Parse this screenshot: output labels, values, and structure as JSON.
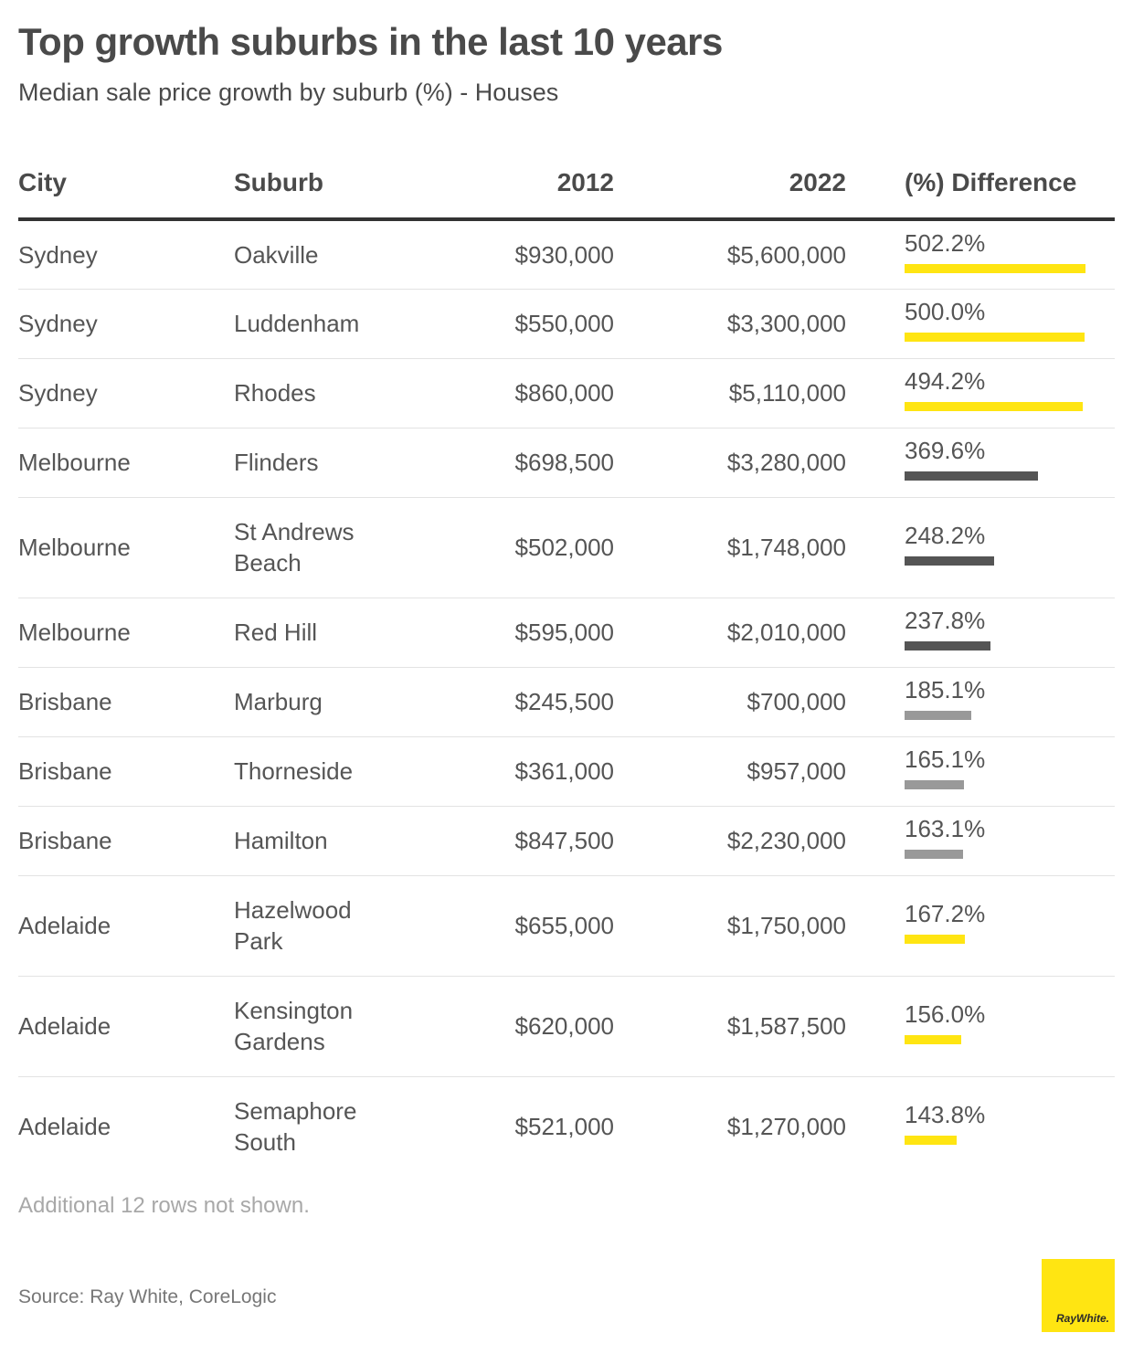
{
  "title": "Top growth suburbs in the last 10 years",
  "subtitle": "Median sale price growth by suburb (%) - Houses",
  "colors": {
    "sydney": "#ffe512",
    "melbourne": "#555555",
    "brisbane": "#999999",
    "adelaide": "#ffe512"
  },
  "chart_data": {
    "type": "table",
    "columns": [
      "City",
      "Suburb",
      "2012",
      "2022",
      "(%) Difference"
    ],
    "bar_max": 502.2,
    "rows": [
      {
        "city": "Sydney",
        "suburb": "Oakville",
        "y2012": "$930,000",
        "y2022": "$5,600,000",
        "diff": "502.2%",
        "diff_value": 502.2
      },
      {
        "city": "Sydney",
        "suburb": "Luddenham",
        "y2012": "$550,000",
        "y2022": "$3,300,000",
        "diff": "500.0%",
        "diff_value": 500.0
      },
      {
        "city": "Sydney",
        "suburb": "Rhodes",
        "y2012": "$860,000",
        "y2022": "$5,110,000",
        "diff": "494.2%",
        "diff_value": 494.2
      },
      {
        "city": "Melbourne",
        "suburb": "Flinders",
        "y2012": "$698,500",
        "y2022": "$3,280,000",
        "diff": "369.6%",
        "diff_value": 369.6
      },
      {
        "city": "Melbourne",
        "suburb": "St Andrews Beach",
        "y2012": "$502,000",
        "y2022": "$1,748,000",
        "diff": "248.2%",
        "diff_value": 248.2
      },
      {
        "city": "Melbourne",
        "suburb": "Red Hill",
        "y2012": "$595,000",
        "y2022": "$2,010,000",
        "diff": "237.8%",
        "diff_value": 237.8
      },
      {
        "city": "Brisbane",
        "suburb": "Marburg",
        "y2012": "$245,500",
        "y2022": "$700,000",
        "diff": "185.1%",
        "diff_value": 185.1
      },
      {
        "city": "Brisbane",
        "suburb": "Thorneside",
        "y2012": "$361,000",
        "y2022": "$957,000",
        "diff": "165.1%",
        "diff_value": 165.1
      },
      {
        "city": "Brisbane",
        "suburb": "Hamilton",
        "y2012": "$847,500",
        "y2022": "$2,230,000",
        "diff": "163.1%",
        "diff_value": 163.1
      },
      {
        "city": "Adelaide",
        "suburb": "Hazelwood Park",
        "y2012": "$655,000",
        "y2022": "$1,750,000",
        "diff": "167.2%",
        "diff_value": 167.2
      },
      {
        "city": "Adelaide",
        "suburb": "Kensington Gardens",
        "y2012": "$620,000",
        "y2022": "$1,587,500",
        "diff": "156.0%",
        "diff_value": 156.0
      },
      {
        "city": "Adelaide",
        "suburb": "Semaphore South",
        "y2012": "$521,000",
        "y2022": "$1,270,000",
        "diff": "143.8%",
        "diff_value": 143.8
      }
    ]
  },
  "note": "Additional 12 rows not shown.",
  "source": "Source: Ray White, CoreLogic",
  "logo_text": "RayWhite."
}
